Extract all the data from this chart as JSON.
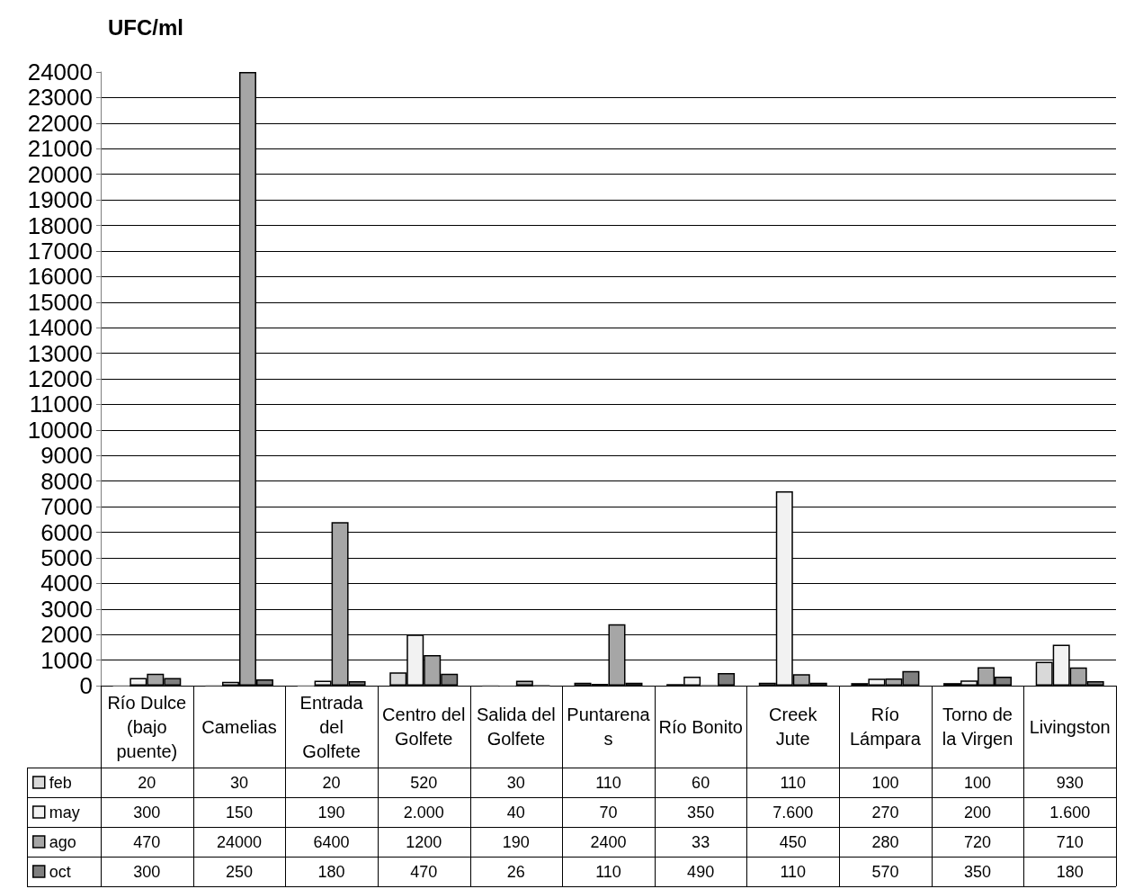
{
  "chart_data": {
    "type": "bar",
    "ylabel": "UFC/ml",
    "categories": [
      "Río Dulce (bajo puente)",
      "Camelias",
      "Entrada del Golfete",
      "Centro del Golfete",
      "Salida del Golfete",
      "Puntarenas",
      "Río Bonito",
      "Creek Jute",
      "Río Lámpara",
      "Torno de la Virgen",
      "Livingston"
    ],
    "series": [
      {
        "name": "feb",
        "color": "#d9d9d9",
        "values": [
          20,
          30,
          20,
          520,
          30,
          110,
          60,
          110,
          100,
          100,
          930
        ],
        "value_labels": [
          "20",
          "30",
          "20",
          "520",
          "30",
          "110",
          "60",
          "110",
          "100",
          "100",
          "930"
        ]
      },
      {
        "name": "may",
        "color": "#f2f2f2",
        "values": [
          300,
          150,
          190,
          2000,
          40,
          70,
          350,
          7600,
          270,
          200,
          1600
        ],
        "value_labels": [
          "300",
          "150",
          "190",
          "2.000",
          "40",
          "70",
          "350",
          "7.600",
          "270",
          "200",
          "1.600"
        ]
      },
      {
        "name": "ago",
        "color": "#a6a6a6",
        "values": [
          470,
          24000,
          6400,
          1200,
          190,
          2400,
          33,
          450,
          280,
          720,
          710
        ],
        "value_labels": [
          "470",
          "24000",
          "6400",
          "1200",
          "190",
          "2400",
          "33",
          "450",
          "280",
          "720",
          "710"
        ]
      },
      {
        "name": "oct",
        "color": "#7f7f7f",
        "values": [
          300,
          250,
          180,
          470,
          26,
          110,
          490,
          110,
          570,
          350,
          180
        ],
        "value_labels": [
          "300",
          "250",
          "180",
          "470",
          "26",
          "110",
          "490",
          "110",
          "570",
          "350",
          "180"
        ]
      }
    ],
    "ylim": [
      0,
      24000
    ],
    "yticks": [
      0,
      1000,
      2000,
      3000,
      4000,
      5000,
      6000,
      7000,
      8000,
      9000,
      10000,
      11000,
      12000,
      13000,
      14000,
      15000,
      16000,
      17000,
      18000,
      19000,
      20000,
      21000,
      22000,
      23000,
      24000
    ],
    "grid": "y",
    "legend": "bottom left"
  }
}
